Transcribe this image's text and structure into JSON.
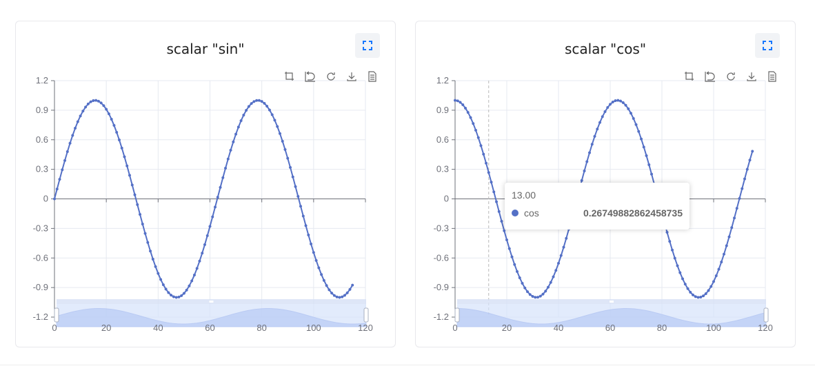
{
  "colors": {
    "series": "#5470c6",
    "accent": "#1677ff"
  },
  "toolbox_icons": [
    "crop-zoom-icon",
    "zoom-reset-icon",
    "restore-icon",
    "download-icon",
    "data-view-icon"
  ],
  "chart_data": [
    {
      "type": "line",
      "title": "scalar \"sin\"",
      "x_range": [
        0,
        115
      ],
      "x_step": 1,
      "function": "sin(x/10)",
      "series": [
        {
          "name": "sin"
        }
      ],
      "xlim": [
        0,
        120
      ],
      "ylim": [
        -1.2,
        1.2
      ],
      "xticks": [
        "0",
        "20",
        "40",
        "60",
        "80",
        "100",
        "120"
      ],
      "yticks": [
        "1.2",
        "0.9",
        "0.6",
        "0.3",
        "0",
        "-0.3",
        "-0.6",
        "-0.9",
        "-1.2"
      ],
      "grid": true,
      "datazoom": true
    },
    {
      "type": "line",
      "title": "scalar \"cos\"",
      "x_range": [
        0,
        115
      ],
      "x_step": 1,
      "function": "cos(x/10)",
      "series": [
        {
          "name": "cos"
        }
      ],
      "xlim": [
        0,
        120
      ],
      "ylim": [
        -1.2,
        1.2
      ],
      "xticks": [
        "0",
        "20",
        "40",
        "60",
        "80",
        "100",
        "120"
      ],
      "yticks": [
        "1.2",
        "0.9",
        "0.6",
        "0.3",
        "0",
        "-0.3",
        "-0.6",
        "-0.9",
        "-1.2"
      ],
      "grid": true,
      "datazoom": true,
      "tooltip": {
        "x": "13.00",
        "series": "cos",
        "value": "0.26749882862458735"
      }
    }
  ]
}
